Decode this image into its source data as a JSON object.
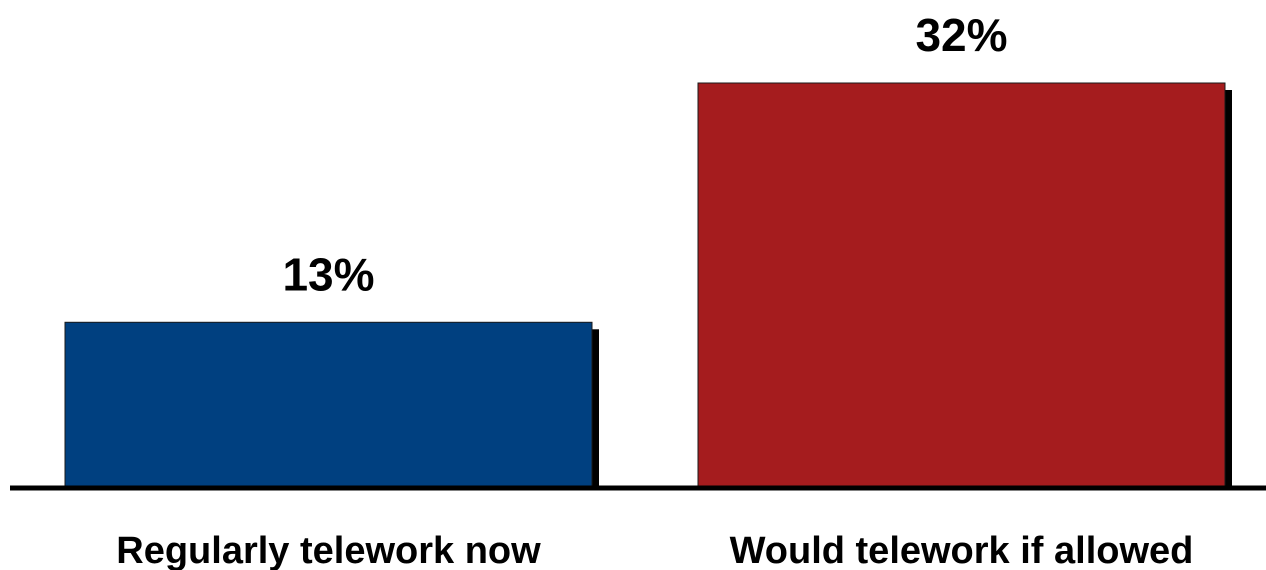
{
  "chart_data": {
    "type": "bar",
    "categories": [
      "Regularly telework now",
      "Would telework if allowed"
    ],
    "values": [
      13,
      32
    ],
    "data_labels": [
      "13%",
      "32%"
    ],
    "colors": [
      "#004080",
      "#A51C1E"
    ],
    "title": "",
    "xlabel": "",
    "ylabel": "",
    "ylim": [
      0,
      32
    ],
    "grid": false,
    "legend": "none",
    "bar_shadow": true
  }
}
